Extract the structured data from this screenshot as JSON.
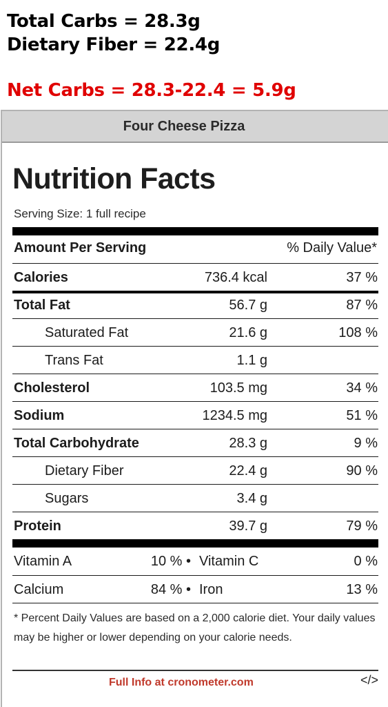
{
  "notes": {
    "total_carbs": "Total Carbs = 28.3g",
    "dietary_fiber": "Dietary Fiber = 22.4g",
    "net_carbs": "Net Carbs = 28.3-22.4 = 5.9g",
    "net_color": "#e00000"
  },
  "card": {
    "header": "Four Cheese Pizza",
    "title": "Nutrition Facts",
    "serving_size": "Serving Size: 1 full recipe",
    "amount_per_serving": "Amount Per Serving",
    "daily_value_header": "% Daily Value*",
    "rows": [
      {
        "name": "Calories",
        "amount": "736.4 kcal",
        "dv": "37 %"
      },
      {
        "name": "Total Fat",
        "amount": "56.7 g",
        "dv": "87 %"
      },
      {
        "name": "Saturated Fat",
        "amount": "21.6 g",
        "dv": "108 %"
      },
      {
        "name": "Trans Fat",
        "amount": "1.1 g",
        "dv": ""
      },
      {
        "name": "Cholesterol",
        "amount": "103.5 mg",
        "dv": "34 %"
      },
      {
        "name": "Sodium",
        "amount": "1234.5 mg",
        "dv": "51 %"
      },
      {
        "name": "Total Carbohydrate",
        "amount": "28.3 g",
        "dv": "9 %"
      },
      {
        "name": "Dietary Fiber",
        "amount": "22.4 g",
        "dv": "90 %"
      },
      {
        "name": "Sugars",
        "amount": "3.4 g",
        "dv": ""
      },
      {
        "name": "Protein",
        "amount": "39.7 g",
        "dv": "79 %"
      }
    ],
    "vitamins": [
      {
        "a": "Vitamin A",
        "a_pct": "10 % •",
        "b": "Vitamin C",
        "b_pct": "0 %"
      },
      {
        "a": "Calcium",
        "a_pct": "84 % •",
        "b": "Iron",
        "b_pct": "13 %"
      }
    ],
    "footnote": "* Percent Daily Values are based on a 2,000 calorie diet. Your daily values may be higher or lower depending on your calorie needs.",
    "full_info_link": "Full Info at cronometer.com",
    "embed_code": "</>",
    "link_color": "#c0392b"
  }
}
